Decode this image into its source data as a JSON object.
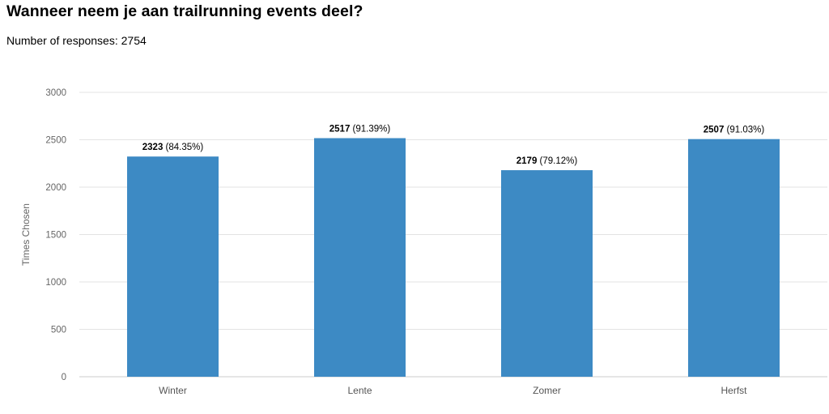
{
  "header": {
    "title": "Wanneer neem je aan trailrunning events deel?",
    "subtitle": "Number of responses: 2754"
  },
  "colors": {
    "bar": "#3d8ac4",
    "grid": "#e3e3e3",
    "axis": "#cccccc"
  },
  "chart_data": {
    "type": "bar",
    "categories": [
      "Winter",
      "Lente",
      "Zomer",
      "Herfst"
    ],
    "values": [
      2323,
      2517,
      2179,
      2507
    ],
    "percent_labels": [
      "(84.35%)",
      "(91.39%)",
      "(79.12%)",
      "(91.03%)"
    ],
    "xlabel": "",
    "ylabel": "Times Chosen",
    "ylim": [
      0,
      3000
    ],
    "yticks": [
      "0",
      "500",
      "1000",
      "1500",
      "2000",
      "2500",
      "3000"
    ],
    "grid": true,
    "legend": "none"
  }
}
